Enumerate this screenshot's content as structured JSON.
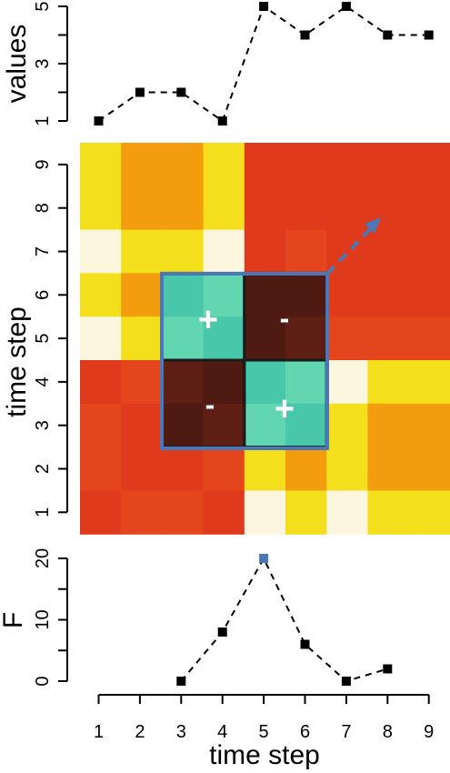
{
  "chart_data": [
    {
      "type": "line",
      "panel": "top",
      "ylabel": "values",
      "x": [
        1,
        2,
        3,
        4,
        5,
        6,
        7,
        8,
        9
      ],
      "values": [
        1,
        2,
        2,
        1,
        5,
        4,
        5,
        4,
        4
      ],
      "yticks": [
        "1",
        "3",
        "5"
      ],
      "ylim": [
        1,
        5
      ],
      "xlim": [
        1,
        9
      ],
      "line_style": "dashed",
      "marker": "square",
      "color": "#000000"
    },
    {
      "type": "heatmap",
      "panel": "middle",
      "ylabel": "time step",
      "x": [
        1,
        2,
        3,
        4,
        5,
        6,
        7,
        8,
        9
      ],
      "y": [
        1,
        2,
        3,
        4,
        5,
        6,
        7,
        8,
        9
      ],
      "yticks": [
        "1",
        "2",
        "3",
        "4",
        "5",
        "6",
        "7",
        "8",
        "9"
      ],
      "palette": {
        "Y": "#f3df1b",
        "O": "#f39c0e",
        "P": "#fdf6df",
        "R": "#e03a1c",
        "R2": "#e4451c",
        "D": "#4e1a12",
        "D2": "#5e2014",
        "C": "#49c7aa",
        "C2": "#62d6b0"
      },
      "cells": [
        [
          "Y",
          "O",
          "O",
          "Y",
          "R",
          "R",
          "R",
          "R",
          "R"
        ],
        [
          "Y",
          "O",
          "O",
          "Y",
          "R",
          "R",
          "R",
          "R",
          "R"
        ],
        [
          "P",
          "Y",
          "Y",
          "P",
          "R",
          "R2",
          "R",
          "R",
          "R"
        ],
        [
          "Y",
          "O",
          "C",
          "C2",
          "D",
          "D",
          "R",
          "R",
          "R"
        ],
        [
          "P",
          "Y",
          "C2",
          "C",
          "D",
          "D2",
          "R2",
          "R2",
          "R2"
        ],
        [
          "R",
          "R2",
          "D2",
          "D",
          "C",
          "C2",
          "P",
          "Y",
          "Y"
        ],
        [
          "R2",
          "R",
          "D",
          "D2",
          "C2",
          "C",
          "Y",
          "O",
          "O"
        ],
        [
          "R2",
          "R",
          "R",
          "R2",
          "Y",
          "O",
          "Y",
          "O",
          "O"
        ],
        [
          "R",
          "R2",
          "R2",
          "R",
          "P",
          "Y",
          "P",
          "Y",
          "Y"
        ]
      ],
      "annotations": {
        "plus_1": "+",
        "minus_1": "-",
        "minus_2": "-",
        "plus_2": "+"
      },
      "highlight_color": "#4a77b7",
      "block_outline_color": "#1b1b1b"
    },
    {
      "type": "line",
      "panel": "bottom",
      "ylabel": "F",
      "xlabel": "time step",
      "x": [
        3,
        4,
        5,
        6,
        7,
        8
      ],
      "values": [
        0,
        8,
        20,
        6,
        0,
        2
      ],
      "yticks": [
        "0",
        "10",
        "20"
      ],
      "xticks": [
        "1",
        "2",
        "3",
        "4",
        "5",
        "6",
        "7",
        "8",
        "9"
      ],
      "ylim": [
        0,
        20
      ],
      "xlim": [
        1,
        9
      ],
      "line_style": "dashed",
      "marker": "square",
      "color": "#000000",
      "highlight_point_color": "#4a77b7",
      "highlight_x": 5
    }
  ]
}
